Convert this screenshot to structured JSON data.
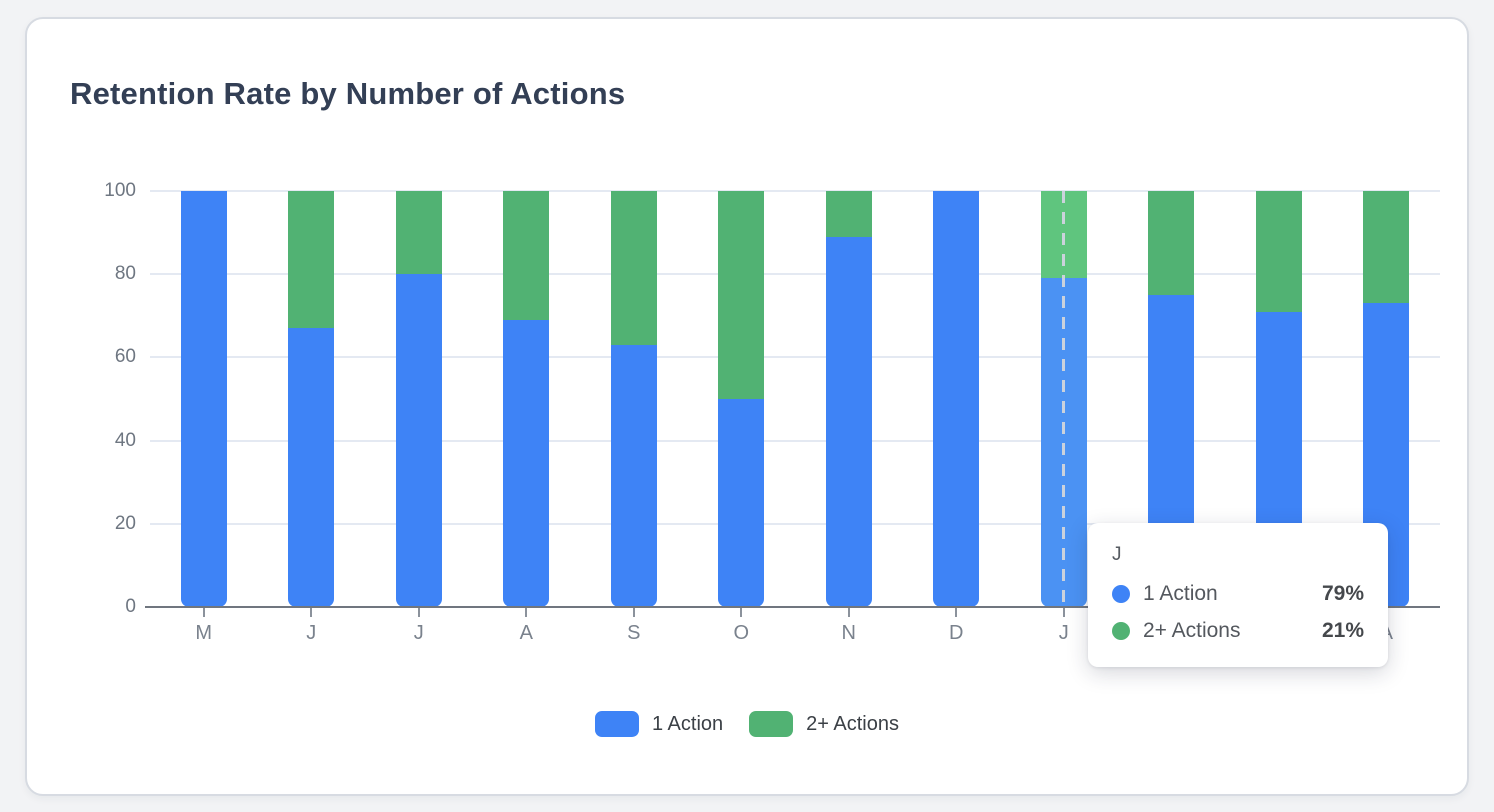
{
  "card": {
    "title": "Retention Rate by Number of Actions"
  },
  "chart_data": {
    "type": "bar",
    "stacked": true,
    "title": "Retention Rate by Number of Actions",
    "categories": [
      "M",
      "J",
      "J",
      "A",
      "S",
      "O",
      "N",
      "D",
      "J",
      "F",
      "M",
      "A"
    ],
    "series": [
      {
        "name": "1 Action",
        "color": "#3e83f6",
        "hover_color": "#4b92f3",
        "values": [
          100,
          67,
          80,
          69,
          63,
          50,
          89,
          100,
          79,
          75,
          71,
          73
        ]
      },
      {
        "name": "2+ Actions",
        "color": "#51b273",
        "hover_color": "#5fc57e",
        "values": [
          0,
          33,
          20,
          31,
          37,
          50,
          11,
          0,
          21,
          25,
          29,
          27
        ]
      }
    ],
    "xlabel": "",
    "ylabel": "",
    "ylim": [
      0,
      100
    ],
    "yticks": [
      0,
      20,
      40,
      60,
      80,
      100
    ],
    "grid": true,
    "legend_position": "bottom",
    "hovered_index": 8
  },
  "tooltip": {
    "title": "J",
    "rows": [
      {
        "label": "1 Action",
        "value": "79%",
        "color": "#3e83f6"
      },
      {
        "label": "2+ Actions",
        "value": "21%",
        "color": "#51b273"
      }
    ]
  },
  "colors": {
    "series_blue": "#3e83f6",
    "series_green": "#51b273",
    "hover_blue": "#4b92f3",
    "hover_green": "#5fc57e",
    "title_text": "#333f55",
    "axis_text": "#6e7681",
    "gridline": "#e4e9f2"
  }
}
